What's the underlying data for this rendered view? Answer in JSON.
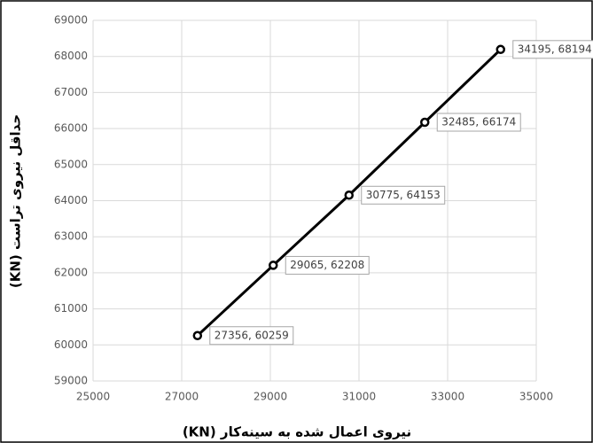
{
  "chart_data": {
    "type": "line",
    "x_label": "نیروی اعمال شده به سینه‌کار (KN)",
    "y_label": "حداقل نیروی تراست (KN)",
    "series": [
      {
        "color": "#000000",
        "x": [
          27356,
          29065,
          30775,
          32485,
          34195
        ],
        "values": [
          60259,
          62208,
          64153,
          66174,
          68194
        ],
        "value_labels": [
          "27356, 60259",
          "29065, 62208",
          "30775, 64153",
          "32485, 66174",
          "34195, 68194"
        ]
      }
    ],
    "xlim": [
      25000,
      35000
    ],
    "xticks": [
      25000,
      27000,
      29000,
      31000,
      33000,
      35000
    ],
    "ylim": [
      59000,
      69000
    ],
    "yticks": [
      59000,
      60000,
      61000,
      62000,
      63000,
      64000,
      65000,
      66000,
      67000,
      68000,
      69000
    ],
    "grid": true
  }
}
